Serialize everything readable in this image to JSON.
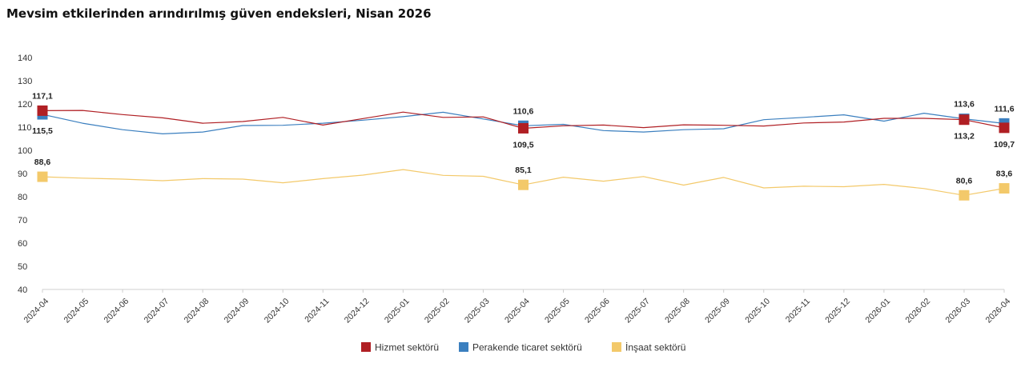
{
  "title": "Mevsim etkilerinden arındırılmış güven endeksleri, Nisan 2026",
  "chart_data": {
    "type": "line",
    "title": "Mevsim etkilerinden arındırılmış güven endeksleri, Nisan 2026",
    "xlabel": "",
    "ylabel": "",
    "ylim": [
      40,
      140
    ],
    "y_ticks": [
      40,
      50,
      60,
      70,
      80,
      90,
      100,
      110,
      120,
      130,
      140
    ],
    "grid": false,
    "legend_position": "bottom-center",
    "categories": [
      "2024-04",
      "2024-05",
      "2024-06",
      "2024-07",
      "2024-08",
      "2024-09",
      "2024-10",
      "2024-11",
      "2024-12",
      "2025-01",
      "2025-02",
      "2025-03",
      "2025-04",
      "2025-05",
      "2025-06",
      "2025-07",
      "2025-08",
      "2025-09",
      "2025-10",
      "2025-11",
      "2025-12",
      "2026-01",
      "2026-02",
      "2026-03",
      "2026-04"
    ],
    "series": [
      {
        "name": "Hizmet sektörü",
        "color": "#b01f24",
        "values": [
          117.1,
          117.2,
          115.4,
          114.0,
          111.7,
          112.4,
          114.2,
          110.9,
          113.7,
          116.5,
          114.2,
          114.4,
          109.5,
          110.6,
          110.9,
          109.8,
          111.0,
          110.8,
          110.5,
          111.8,
          112.2,
          113.8,
          113.8,
          113.2,
          109.7
        ],
        "markers": [
          0,
          12,
          23,
          24
        ],
        "labels": [
          {
            "i": 0,
            "text": "117,1",
            "pos": "above"
          },
          {
            "i": 12,
            "text": "109,5",
            "pos": "below"
          },
          {
            "i": 23,
            "text": "113,2",
            "pos": "below"
          },
          {
            "i": 24,
            "text": "109,7",
            "pos": "below"
          }
        ]
      },
      {
        "name": "Perakende ticaret sektörü",
        "color": "#3b7fbf",
        "values": [
          115.5,
          111.7,
          108.9,
          107.1,
          107.9,
          110.7,
          110.8,
          111.7,
          113.0,
          114.5,
          116.4,
          113.5,
          110.6,
          111.2,
          108.5,
          107.9,
          108.9,
          109.3,
          113.2,
          114.2,
          115.3,
          112.6,
          116.0,
          113.6,
          111.6
        ],
        "markers": [
          0,
          12,
          23,
          24
        ],
        "labels": [
          {
            "i": 0,
            "text": "115,5",
            "pos": "below"
          },
          {
            "i": 12,
            "text": "110,6",
            "pos": "above"
          },
          {
            "i": 23,
            "text": "113,6",
            "pos": "above"
          },
          {
            "i": 24,
            "text": "111,6",
            "pos": "above"
          }
        ]
      },
      {
        "name": "İnşaat sektörü",
        "color": "#f3c96a",
        "values": [
          88.6,
          88.0,
          87.6,
          86.9,
          87.8,
          87.6,
          86.0,
          87.8,
          89.3,
          91.7,
          89.2,
          88.8,
          85.1,
          88.4,
          86.7,
          88.7,
          85.0,
          88.3,
          83.8,
          84.5,
          84.3,
          85.3,
          83.5,
          80.6,
          83.6
        ],
        "markers": [
          0,
          12,
          23,
          24
        ],
        "labels": [
          {
            "i": 0,
            "text": "88,6",
            "pos": "above"
          },
          {
            "i": 12,
            "text": "85,1",
            "pos": "above"
          },
          {
            "i": 23,
            "text": "80,6",
            "pos": "above"
          },
          {
            "i": 24,
            "text": "83,6",
            "pos": "above"
          }
        ]
      }
    ]
  }
}
